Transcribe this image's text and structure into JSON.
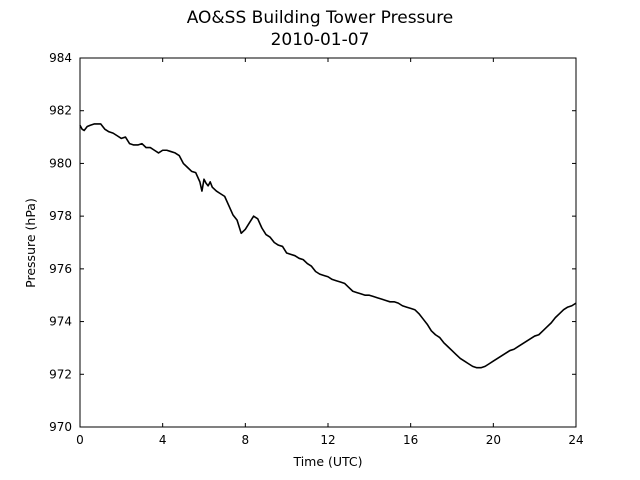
{
  "chart_data": {
    "type": "line",
    "title": "AO&SS Building Tower Pressure",
    "subtitle": "2010-01-07",
    "xlabel": "Time (UTC)",
    "ylabel": "Pressure (hPa)",
    "xlim": [
      0,
      24
    ],
    "ylim": [
      970,
      984
    ],
    "xticks": [
      0,
      4,
      8,
      12,
      16,
      20,
      24
    ],
    "yticks": [
      970,
      972,
      974,
      976,
      978,
      980,
      982,
      984
    ],
    "grid": false,
    "line_color": "#000000",
    "series": [
      {
        "x": [
          0,
          0.1,
          0.2,
          0.35,
          0.5,
          0.7,
          0.9,
          1.0,
          1.2,
          1.4,
          1.6,
          1.8,
          2.0,
          2.2,
          2.4,
          2.6,
          2.8,
          3.0,
          3.2,
          3.4,
          3.6,
          3.8,
          4.0,
          4.2,
          4.4,
          4.6,
          4.8,
          5.0,
          5.2,
          5.4,
          5.6,
          5.8,
          5.9,
          6.0,
          6.1,
          6.2,
          6.3,
          6.4,
          6.6,
          6.8,
          7.0,
          7.2,
          7.4,
          7.6,
          7.8,
          8.0,
          8.2,
          8.4,
          8.6,
          8.8,
          9.0,
          9.2,
          9.4,
          9.6,
          9.8,
          10.0,
          10.2,
          10.4,
          10.6,
          10.8,
          11.0,
          11.2,
          11.4,
          11.6,
          11.8,
          12.0,
          12.2,
          12.4,
          12.6,
          12.8,
          13.0,
          13.2,
          13.4,
          13.6,
          13.8,
          14.0,
          14.2,
          14.4,
          14.6,
          14.8,
          15.0,
          15.2,
          15.4,
          15.6,
          15.8,
          16.0,
          16.2,
          16.4,
          16.6,
          16.8,
          17.0,
          17.2,
          17.4,
          17.6,
          17.8,
          18.0,
          18.2,
          18.4,
          18.6,
          18.8,
          19.0,
          19.2,
          19.4,
          19.6,
          19.8,
          20.0,
          20.2,
          20.4,
          20.6,
          20.8,
          21.0,
          21.2,
          21.4,
          21.6,
          21.8,
          22.0,
          22.2,
          22.4,
          22.6,
          22.8,
          23.0,
          23.2,
          23.4,
          23.6,
          23.8,
          24.0
        ],
        "values": [
          981.45,
          981.3,
          981.25,
          981.4,
          981.45,
          981.5,
          981.5,
          981.5,
          981.3,
          981.2,
          981.15,
          981.05,
          980.95,
          981.0,
          980.75,
          980.7,
          980.7,
          980.75,
          980.6,
          980.6,
          980.5,
          980.4,
          980.5,
          980.5,
          980.45,
          980.4,
          980.3,
          980.0,
          979.85,
          979.7,
          979.65,
          979.3,
          978.95,
          979.4,
          979.25,
          979.15,
          979.3,
          979.1,
          978.95,
          978.85,
          978.75,
          978.4,
          978.05,
          977.85,
          977.35,
          977.5,
          977.75,
          978.0,
          977.9,
          977.55,
          977.3,
          977.2,
          977.0,
          976.9,
          976.85,
          976.6,
          976.55,
          976.5,
          976.4,
          976.35,
          976.2,
          976.1,
          975.9,
          975.8,
          975.75,
          975.7,
          975.6,
          975.55,
          975.5,
          975.45,
          975.3,
          975.15,
          975.1,
          975.05,
          975.0,
          975.0,
          974.95,
          974.9,
          974.85,
          974.8,
          974.75,
          974.75,
          974.7,
          974.6,
          974.55,
          974.5,
          974.45,
          974.3,
          974.1,
          973.9,
          973.65,
          973.5,
          973.4,
          973.2,
          973.05,
          972.9,
          972.75,
          972.6,
          972.5,
          972.4,
          972.3,
          972.25,
          972.25,
          972.3,
          972.4,
          972.5,
          972.6,
          972.7,
          972.8,
          972.9,
          972.95,
          973.05,
          973.15,
          973.25,
          973.35,
          973.45,
          973.5,
          973.65,
          973.8,
          973.95,
          974.15,
          974.3,
          974.45,
          974.55,
          974.6,
          974.7
        ]
      }
    ]
  }
}
